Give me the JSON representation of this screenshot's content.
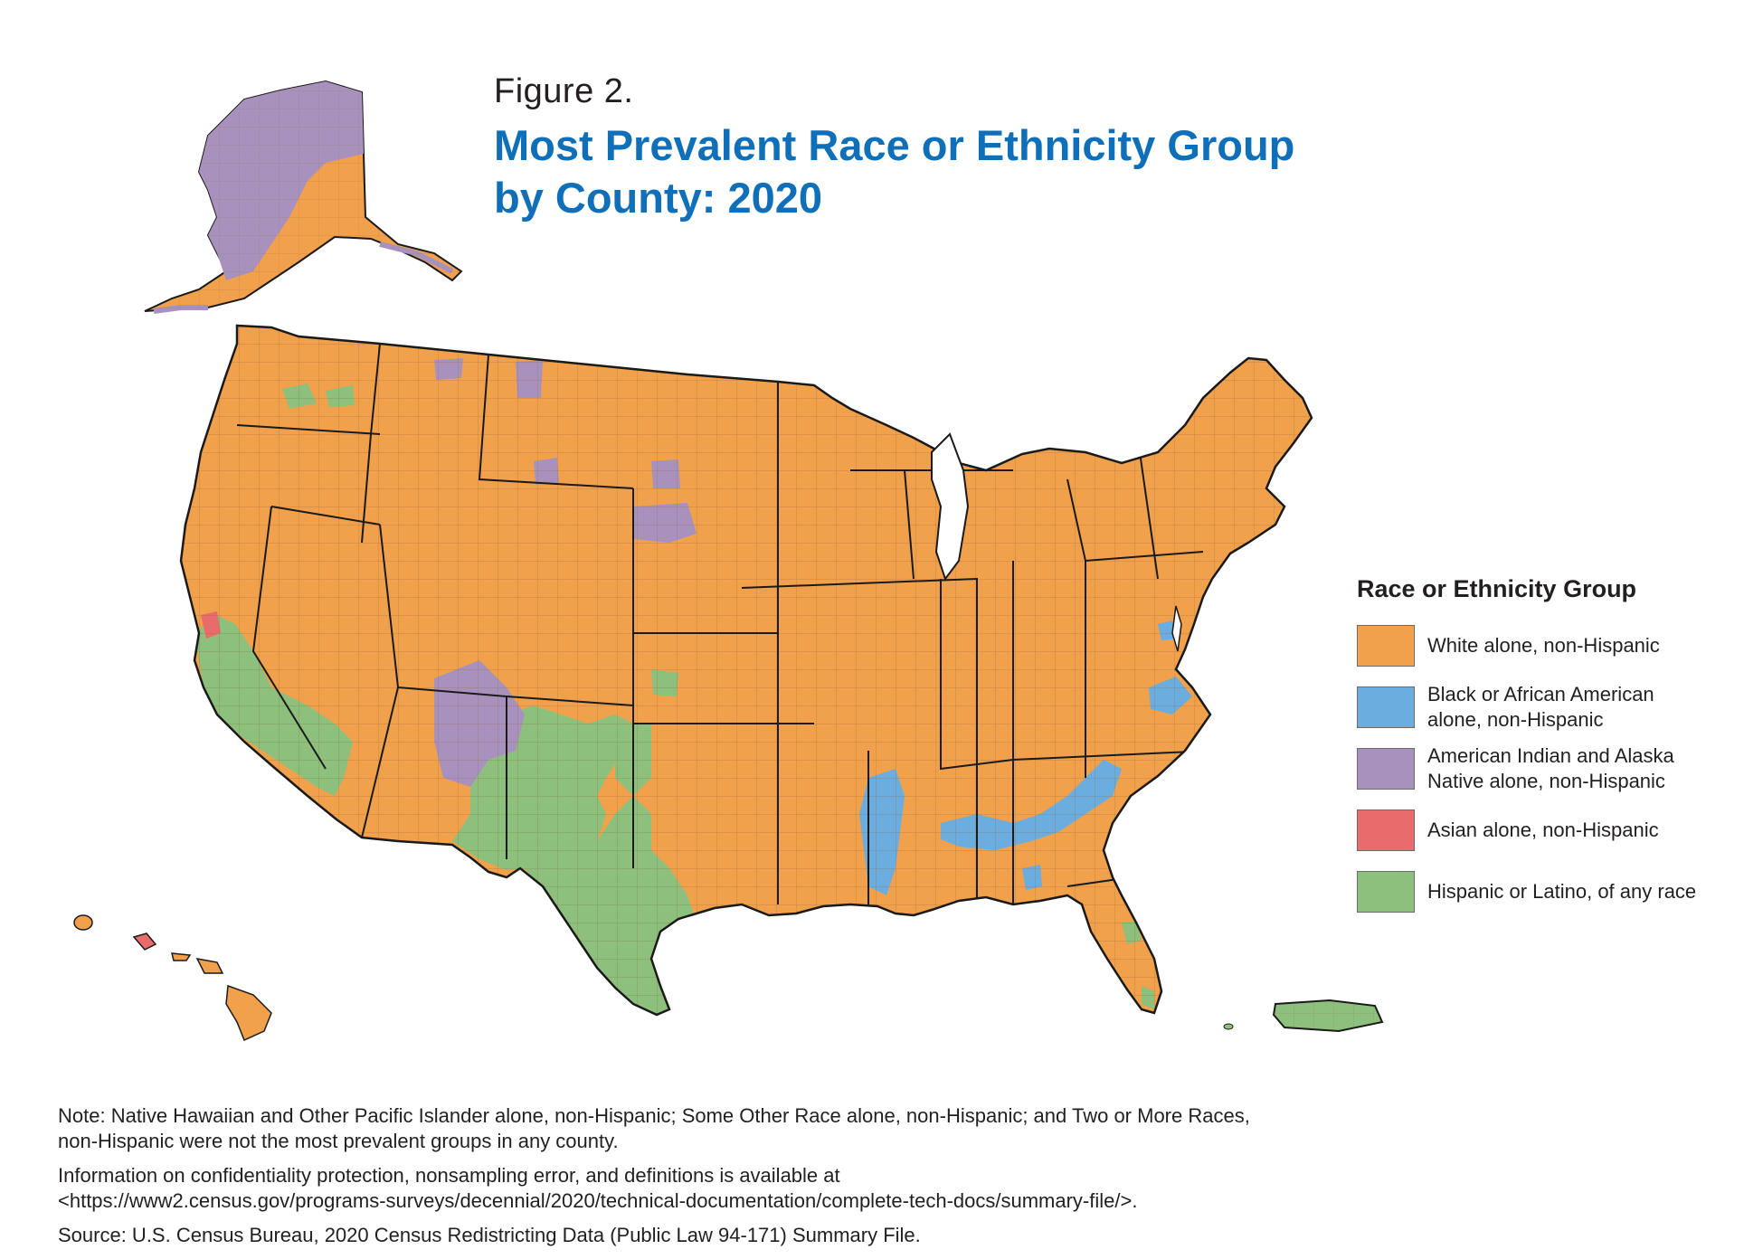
{
  "figure": {
    "label": "Figure 2.",
    "title_line1": "Most Prevalent Race or Ethnicity Group",
    "title_line2": "by County: 2020"
  },
  "legend": {
    "title": "Race or Ethnicity Group",
    "items": [
      {
        "line1": "White alone, non-Hispanic",
        "line2": "",
        "color": "#f1a14c"
      },
      {
        "line1": "Black or African American",
        "line2": "alone, non-Hispanic",
        "color": "#6badde"
      },
      {
        "line1": "American Indian and Alaska",
        "line2": "Native alone, non-Hispanic",
        "color": "#a892bd"
      },
      {
        "line1": "Asian alone, non-Hispanic",
        "line2": "",
        "color": "#ea6b6b"
      },
      {
        "line1": "Hispanic or Latino, of any race",
        "line2": "",
        "color": "#8dc07c"
      }
    ]
  },
  "map": {
    "regions": [
      "Alaska",
      "Hawaii",
      "Contiguous United States",
      "Puerto Rico"
    ],
    "colors": {
      "white": "#f1a14c",
      "black": "#6badde",
      "aian": "#a892bd",
      "asian": "#ea6b6b",
      "hispanic": "#8dc07c",
      "border": "#1a1a1a"
    }
  },
  "notes": {
    "note_line1": "Note: Native Hawaiian and Other Pacific Islander alone, non-Hispanic; Some Other Race alone, non-Hispanic; and Two or More Races,",
    "note_line2": "non-Hispanic were not the most prevalent groups in any county.",
    "info_line1": "Information on confidentiality protection, nonsampling error, and definitions is available at",
    "info_line2": "<https://www2.census.gov/programs-surveys/decennial/2020/technical-documentation/complete-tech-docs/summary-file/>.",
    "source": "Source: U.S. Census Bureau, 2020 Census Redistricting Data (Public Law 94-171) Summary File."
  }
}
